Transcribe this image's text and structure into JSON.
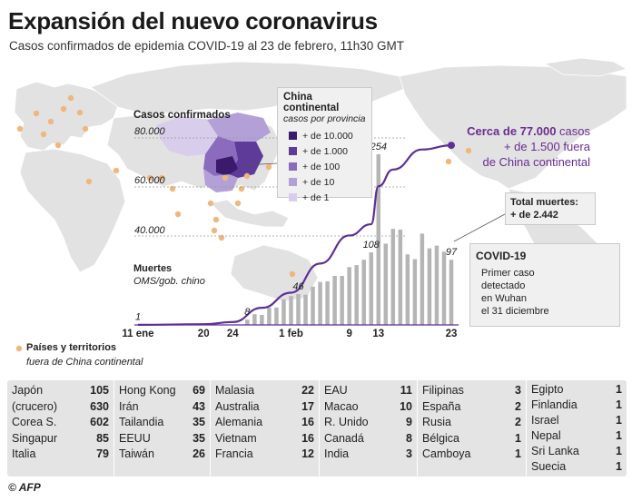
{
  "header": {
    "title": "Expansión del nuevo coronavirus",
    "subtitle": "Casos confirmados de epidemia COVID-19 al 23 de febrero, 11h30 GMT"
  },
  "china_legend": {
    "title": "China continental",
    "subtitle": "casos por provincia",
    "items": [
      {
        "label": "+ de 10.000",
        "color": "#3b1a6b"
      },
      {
        "label": "+ de 1.000",
        "color": "#5e3a99"
      },
      {
        "label": "+ de 100",
        "color": "#8a6bbd"
      },
      {
        "label": "+ de 10",
        "color": "#b3a0d6"
      },
      {
        "label": "+ de 1",
        "color": "#d9cdec"
      }
    ]
  },
  "cases_note": {
    "line1_bold": "Cerca de 77.000",
    "line1_rest": " casos",
    "line2": "+ de 1.500 fuera",
    "line3": "de China continental"
  },
  "deaths_box": {
    "line1": "Total muertes:",
    "line2": "+ de 2.442"
  },
  "covid_box": {
    "title": "COVID-19",
    "lines": [
      "Primer caso",
      "detectado",
      "en Wuhan",
      "el 31 diciembre"
    ]
  },
  "map_legend": {
    "line1": "Países y territorios",
    "line2": "fuera de China continental"
  },
  "chart_data": {
    "type": "bar+line",
    "cases_axis_label": "Casos confirmados",
    "deaths_axis_label": "Muertes",
    "deaths_axis_sublabel": "OMS/gob. chino",
    "y_ticks": [
      "80.000",
      "60.000",
      "40.000"
    ],
    "x_tick_labels": [
      "11 ene",
      "20",
      "24",
      "1 feb",
      "9",
      "13",
      "23"
    ],
    "x_tick_days": [
      1,
      10,
      14,
      22,
      30,
      34,
      44
    ],
    "line_series": {
      "name": "Casos confirmados",
      "days": [
        1,
        10,
        14,
        18,
        22,
        26,
        30,
        33,
        34,
        36,
        40,
        44
      ],
      "values": [
        41,
        300,
        1300,
        7700,
        14500,
        27600,
        40200,
        44800,
        60300,
        67100,
        75300,
        77000
      ],
      "color": "#5e2f96"
    },
    "bars": {
      "name": "Muertes",
      "days": [
        16,
        17,
        18,
        19,
        20,
        21,
        22,
        23,
        24,
        25,
        26,
        27,
        28,
        29,
        30,
        31,
        32,
        33,
        34,
        35,
        36,
        37,
        38,
        39,
        40,
        41,
        42,
        43,
        44
      ],
      "values": [
        8,
        16,
        15,
        26,
        26,
        38,
        43,
        46,
        45,
        57,
        64,
        65,
        73,
        73,
        86,
        89,
        97,
        108,
        254,
        121,
        143,
        142,
        105,
        98,
        136,
        114,
        118,
        109,
        97
      ],
      "color": "#b5b5b5"
    },
    "labels": [
      {
        "day": 1,
        "value": 1,
        "text": "1"
      },
      {
        "day": 16,
        "value": 8,
        "text": "8"
      },
      {
        "day": 23,
        "value": 46,
        "text": "46"
      },
      {
        "day": 33,
        "value": 108,
        "text": "108"
      },
      {
        "day": 34,
        "value": 254,
        "text": "254"
      },
      {
        "day": 44,
        "value": 97,
        "text": "97"
      }
    ]
  },
  "table": {
    "columns": [
      [
        [
          "Japón",
          "105"
        ],
        [
          "(crucero)",
          "630"
        ],
        [
          "Corea S.",
          "602"
        ],
        [
          "Singapur",
          "85"
        ],
        [
          "Italia",
          "79"
        ]
      ],
      [
        [
          "Hong Kong",
          "69"
        ],
        [
          "Irán",
          "43"
        ],
        [
          "Tailandia",
          "35"
        ],
        [
          "EEUU",
          "35"
        ],
        [
          "Taiwán",
          "26"
        ]
      ],
      [
        [
          "Malasia",
          "22"
        ],
        [
          "Australia",
          "17"
        ],
        [
          "Alemania",
          "16"
        ],
        [
          "Vietnam",
          "16"
        ],
        [
          "Francia",
          "12"
        ]
      ],
      [
        [
          "EAU",
          "11"
        ],
        [
          "Macao",
          "10"
        ],
        [
          "R. Unido",
          "9"
        ],
        [
          "Canadá",
          "8"
        ],
        [
          "India",
          "3"
        ]
      ],
      [
        [
          "Filipinas",
          "3"
        ],
        [
          "España",
          "2"
        ],
        [
          "Rusia",
          "2"
        ],
        [
          "Bélgica",
          "1"
        ],
        [
          "Camboya",
          "1"
        ]
      ],
      [
        [
          "Egipto",
          "1"
        ],
        [
          "Finlandia",
          "1"
        ],
        [
          "Israel",
          "1"
        ],
        [
          "Nepal",
          "1"
        ],
        [
          "Sri Lanka",
          "1"
        ],
        [
          "Suecia",
          "1"
        ]
      ]
    ]
  },
  "credit": "© AFP",
  "colors": {
    "land": "#e2e2e2",
    "dot": "#f0b77c",
    "line": "#5e2f96",
    "bar": "#b5b5b5"
  }
}
